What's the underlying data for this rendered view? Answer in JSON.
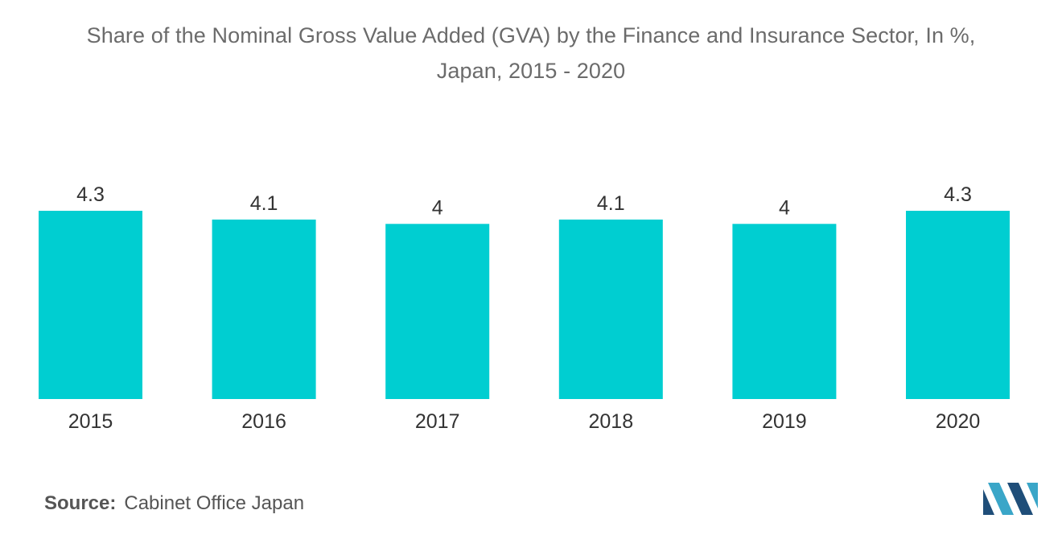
{
  "chart_data": {
    "type": "bar",
    "title_lines": [
      "Share of the Nominal Gross Value Added (GVA) by the Finance and Insurance Sector, In %,",
      "Japan, 2015 - 2020"
    ],
    "categories": [
      "2015",
      "2016",
      "2017",
      "2018",
      "2019",
      "2020"
    ],
    "values": [
      4.3,
      4.1,
      4,
      4.1,
      4,
      4.3
    ],
    "value_labels": [
      "4.3",
      "4.1",
      "4",
      "4.1",
      "4",
      "4.3"
    ],
    "xlabel": "",
    "ylabel": "",
    "ylim": [
      0,
      4.3
    ],
    "grid": false,
    "legend": "none",
    "bar_color": "#00ced1"
  },
  "source": {
    "label": "Source:",
    "text": "Cabinet Office Japan"
  },
  "logo": {
    "icon": "mordor-intelligence-logo-icon",
    "colors": [
      "#1f4e79",
      "#3aa6c8"
    ]
  }
}
